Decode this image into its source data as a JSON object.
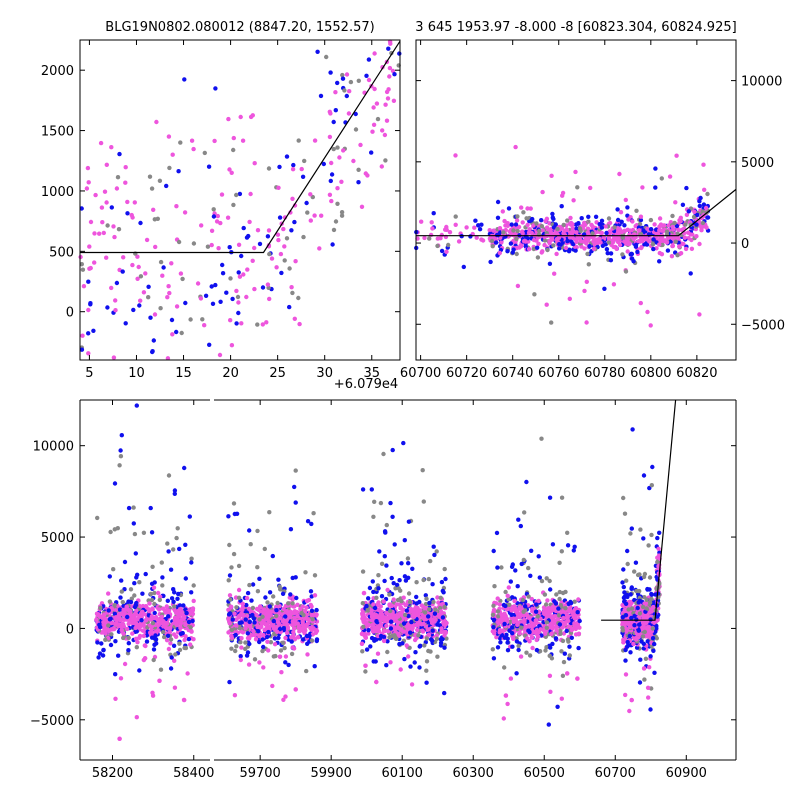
{
  "colors": {
    "gray": "#888888",
    "blue": "#1010ee",
    "magenta": "#ee55dd",
    "line": "#000000"
  },
  "chart_data": [
    {
      "id": "zoom",
      "type": "scatter",
      "title": "BLG19N0802.080012 (8847.20, 1552.57)",
      "offset_label": "+6.079e4",
      "xlim": [
        4,
        38
      ],
      "ylim": [
        -400,
        2250
      ],
      "xticks": [
        5,
        10,
        15,
        20,
        25,
        30,
        35
      ],
      "yticks": [
        0,
        500,
        1000,
        1500,
        2000
      ],
      "ytick_side": "left",
      "model_line": [
        [
          4,
          490
        ],
        [
          23.5,
          490
        ],
        [
          38,
          2240
        ]
      ],
      "series": [
        {
          "name": "gray",
          "color": "#888888",
          "n": 70
        },
        {
          "name": "blue",
          "color": "#1010ee",
          "n": 95
        },
        {
          "name": "magenta",
          "color": "#ee55dd",
          "n": 200
        }
      ]
    },
    {
      "id": "recent",
      "type": "scatter",
      "title": "3 645 1953.97 -8.000 -8 [60823.304, 60824.925]",
      "xlim": [
        60698,
        60837
      ],
      "ylim": [
        -7200,
        12500
      ],
      "xticks": [
        60700,
        60720,
        60740,
        60760,
        60780,
        60800,
        60820
      ],
      "yticks": [
        -5000,
        0,
        5000,
        10000
      ],
      "ytick_side": "right",
      "model_line": [
        [
          60698,
          450
        ],
        [
          60812,
          450
        ],
        [
          60837,
          3300
        ]
      ],
      "series": [
        {
          "name": "gray",
          "color": "#888888",
          "n": 130
        },
        {
          "name": "blue",
          "color": "#1010ee",
          "n": 260
        },
        {
          "name": "magenta",
          "color": "#ee55dd",
          "n": 600
        }
      ]
    },
    {
      "id": "full",
      "type": "scatter",
      "title": "",
      "broken_axis": true,
      "segments": [
        {
          "xlim": [
            58120,
            58440
          ],
          "xticks": [
            58200,
            58400
          ]
        },
        {
          "xlim": [
            59570,
            61040
          ],
          "xticks": [
            59700,
            59900,
            60100,
            60300,
            60500,
            60700,
            60900
          ]
        }
      ],
      "ylim": [
        -7200,
        12500
      ],
      "yticks": [
        -5000,
        0,
        5000,
        10000
      ],
      "ytick_side": "left",
      "seasons": [
        [
          58160,
          58400
        ],
        [
          59610,
          59860
        ],
        [
          59985,
          60225
        ],
        [
          60355,
          60600
        ],
        [
          60720,
          60825
        ]
      ],
      "model_line": [
        [
          60660,
          450
        ],
        [
          60812,
          450
        ],
        [
          60870,
          12500
        ]
      ],
      "series": [
        {
          "name": "gray",
          "color": "#888888",
          "n": 600
        },
        {
          "name": "blue",
          "color": "#1010ee",
          "n": 900
        },
        {
          "name": "magenta",
          "color": "#ee55dd",
          "n": 2500
        }
      ]
    }
  ]
}
